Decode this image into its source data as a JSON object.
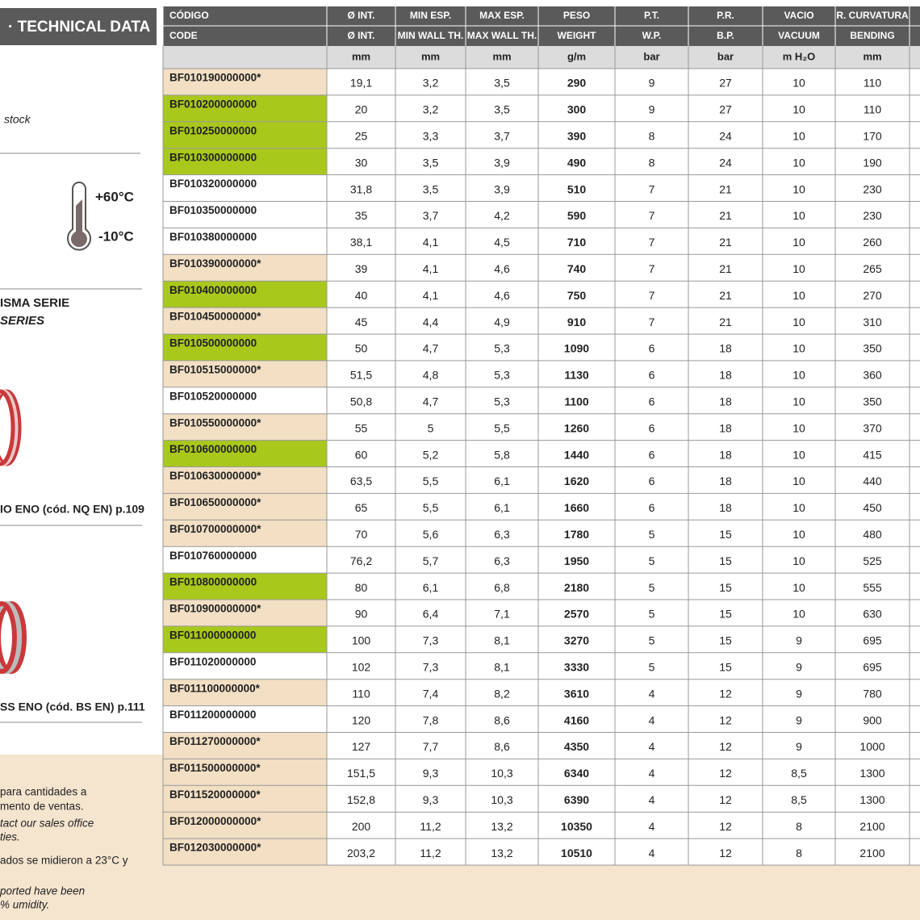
{
  "sidebar": {
    "header": "· TECHNICAL DATA",
    "stock_note": "stock",
    "temp_max": "+60°C",
    "temp_min": "-10°C",
    "series_es": "ISMA SERIE",
    "series_en": "SERIES",
    "related_1": "IO ENO (cód. NQ EN) p.109",
    "related_2": "SS ENO (cód. BS EN) p.111",
    "notes": [
      "para cantidades a",
      "mento de ventas.",
      "tact our sales office",
      "ties.",
      "ados se midieron a 23°C y",
      "ported have been",
      "% umidity."
    ]
  },
  "table": {
    "header_es": [
      "CÓDIGO",
      "Ø INT.",
      "MIN ESP.",
      "MAX ESP.",
      "PESO",
      "P.T.",
      "P.R.",
      "VACIO",
      "R. CURVATURA"
    ],
    "header_en": [
      "CODE",
      "Ø INT.",
      "MIN WALL TH.",
      "MAX WALL TH.",
      "WEIGHT",
      "W.P.",
      "B.P.",
      "VACUUM",
      "BENDING"
    ],
    "units": [
      "mm",
      "mm",
      "mm",
      "g/m",
      "bar",
      "bar",
      "m H₂O",
      "mm"
    ],
    "rows": [
      {
        "code": "BF010190000000*",
        "fill": "#f2dfc4",
        "cells": [
          "19,1",
          "3,2",
          "3,5",
          "290",
          "9",
          "27",
          "10",
          "110"
        ]
      },
      {
        "code": "BF010200000000",
        "fill": "#a9c81c",
        "cells": [
          "20",
          "3,2",
          "3,5",
          "300",
          "9",
          "27",
          "10",
          "110"
        ]
      },
      {
        "code": "BF010250000000",
        "fill": "#a9c81c",
        "cells": [
          "25",
          "3,3",
          "3,7",
          "390",
          "8",
          "24",
          "10",
          "170"
        ]
      },
      {
        "code": "BF010300000000",
        "fill": "#a9c81c",
        "cells": [
          "30",
          "3,5",
          "3,9",
          "490",
          "8",
          "24",
          "10",
          "190"
        ]
      },
      {
        "code": "BF010320000000",
        "fill": "#ffffff",
        "cells": [
          "31,8",
          "3,5",
          "3,9",
          "510",
          "7",
          "21",
          "10",
          "230"
        ]
      },
      {
        "code": "BF010350000000",
        "fill": "#ffffff",
        "cells": [
          "35",
          "3,7",
          "4,2",
          "590",
          "7",
          "21",
          "10",
          "230"
        ]
      },
      {
        "code": "BF010380000000",
        "fill": "#ffffff",
        "cells": [
          "38,1",
          "4,1",
          "4,5",
          "710",
          "7",
          "21",
          "10",
          "260"
        ]
      },
      {
        "code": "BF010390000000*",
        "fill": "#f2dfc4",
        "cells": [
          "39",
          "4,1",
          "4,6",
          "740",
          "7",
          "21",
          "10",
          "265"
        ]
      },
      {
        "code": "BF010400000000",
        "fill": "#a9c81c",
        "cells": [
          "40",
          "4,1",
          "4,6",
          "750",
          "7",
          "21",
          "10",
          "270"
        ]
      },
      {
        "code": "BF010450000000*",
        "fill": "#f2dfc4",
        "cells": [
          "45",
          "4,4",
          "4,9",
          "910",
          "7",
          "21",
          "10",
          "310"
        ]
      },
      {
        "code": "BF010500000000",
        "fill": "#a9c81c",
        "cells": [
          "50",
          "4,7",
          "5,3",
          "1090",
          "6",
          "18",
          "10",
          "350"
        ]
      },
      {
        "code": "BF010515000000*",
        "fill": "#f2dfc4",
        "cells": [
          "51,5",
          "4,8",
          "5,3",
          "1130",
          "6",
          "18",
          "10",
          "360"
        ]
      },
      {
        "code": "BF010520000000",
        "fill": "#ffffff",
        "cells": [
          "50,8",
          "4,7",
          "5,3",
          "1100",
          "6",
          "18",
          "10",
          "350"
        ]
      },
      {
        "code": "BF010550000000*",
        "fill": "#f2dfc4",
        "cells": [
          "55",
          "5",
          "5,5",
          "1260",
          "6",
          "18",
          "10",
          "370"
        ]
      },
      {
        "code": "BF010600000000",
        "fill": "#a9c81c",
        "cells": [
          "60",
          "5,2",
          "5,8",
          "1440",
          "6",
          "18",
          "10",
          "415"
        ]
      },
      {
        "code": "BF010630000000*",
        "fill": "#f2dfc4",
        "cells": [
          "63,5",
          "5,5",
          "6,1",
          "1620",
          "6",
          "18",
          "10",
          "440"
        ]
      },
      {
        "code": "BF010650000000*",
        "fill": "#f2dfc4",
        "cells": [
          "65",
          "5,5",
          "6,1",
          "1660",
          "6",
          "18",
          "10",
          "450"
        ]
      },
      {
        "code": "BF010700000000*",
        "fill": "#f2dfc4",
        "cells": [
          "70",
          "5,6",
          "6,3",
          "1780",
          "5",
          "15",
          "10",
          "480"
        ]
      },
      {
        "code": "BF010760000000",
        "fill": "#ffffff",
        "cells": [
          "76,2",
          "5,7",
          "6,3",
          "1950",
          "5",
          "15",
          "10",
          "525"
        ]
      },
      {
        "code": "BF010800000000",
        "fill": "#a9c81c",
        "cells": [
          "80",
          "6,1",
          "6,8",
          "2180",
          "5",
          "15",
          "10",
          "555"
        ]
      },
      {
        "code": "BF010900000000*",
        "fill": "#f2dfc4",
        "cells": [
          "90",
          "6,4",
          "7,1",
          "2570",
          "5",
          "15",
          "10",
          "630"
        ]
      },
      {
        "code": "BF011000000000",
        "fill": "#a9c81c",
        "cells": [
          "100",
          "7,3",
          "8,1",
          "3270",
          "5",
          "15",
          "9",
          "695"
        ]
      },
      {
        "code": "BF011020000000",
        "fill": "#ffffff",
        "cells": [
          "102",
          "7,3",
          "8,1",
          "3330",
          "5",
          "15",
          "9",
          "695"
        ]
      },
      {
        "code": "BF011100000000*",
        "fill": "#f2dfc4",
        "cells": [
          "110",
          "7,4",
          "8,2",
          "3610",
          "4",
          "12",
          "9",
          "780"
        ]
      },
      {
        "code": "BF011200000000",
        "fill": "#ffffff",
        "cells": [
          "120",
          "7,8",
          "8,6",
          "4160",
          "4",
          "12",
          "9",
          "900"
        ]
      },
      {
        "code": "BF011270000000*",
        "fill": "#f2dfc4",
        "cells": [
          "127",
          "7,7",
          "8,6",
          "4350",
          "4",
          "12",
          "9",
          "1000"
        ]
      },
      {
        "code": "BF011500000000*",
        "fill": "#f2dfc4",
        "cells": [
          "151,5",
          "9,3",
          "10,3",
          "6340",
          "4",
          "12",
          "8,5",
          "1300"
        ]
      },
      {
        "code": "BF011520000000*",
        "fill": "#f2dfc4",
        "cells": [
          "152,8",
          "9,3",
          "10,3",
          "6390",
          "4",
          "12",
          "8,5",
          "1300"
        ]
      },
      {
        "code": "BF012000000000*",
        "fill": "#f2dfc4",
        "cells": [
          "200",
          "11,2",
          "13,2",
          "10350",
          "4",
          "12",
          "8",
          "2100"
        ]
      },
      {
        "code": "BF012030000000*",
        "fill": "#f2dfc4",
        "cells": [
          "203,2",
          "11,2",
          "13,2",
          "10510",
          "4",
          "12",
          "8",
          "2100"
        ]
      }
    ]
  }
}
